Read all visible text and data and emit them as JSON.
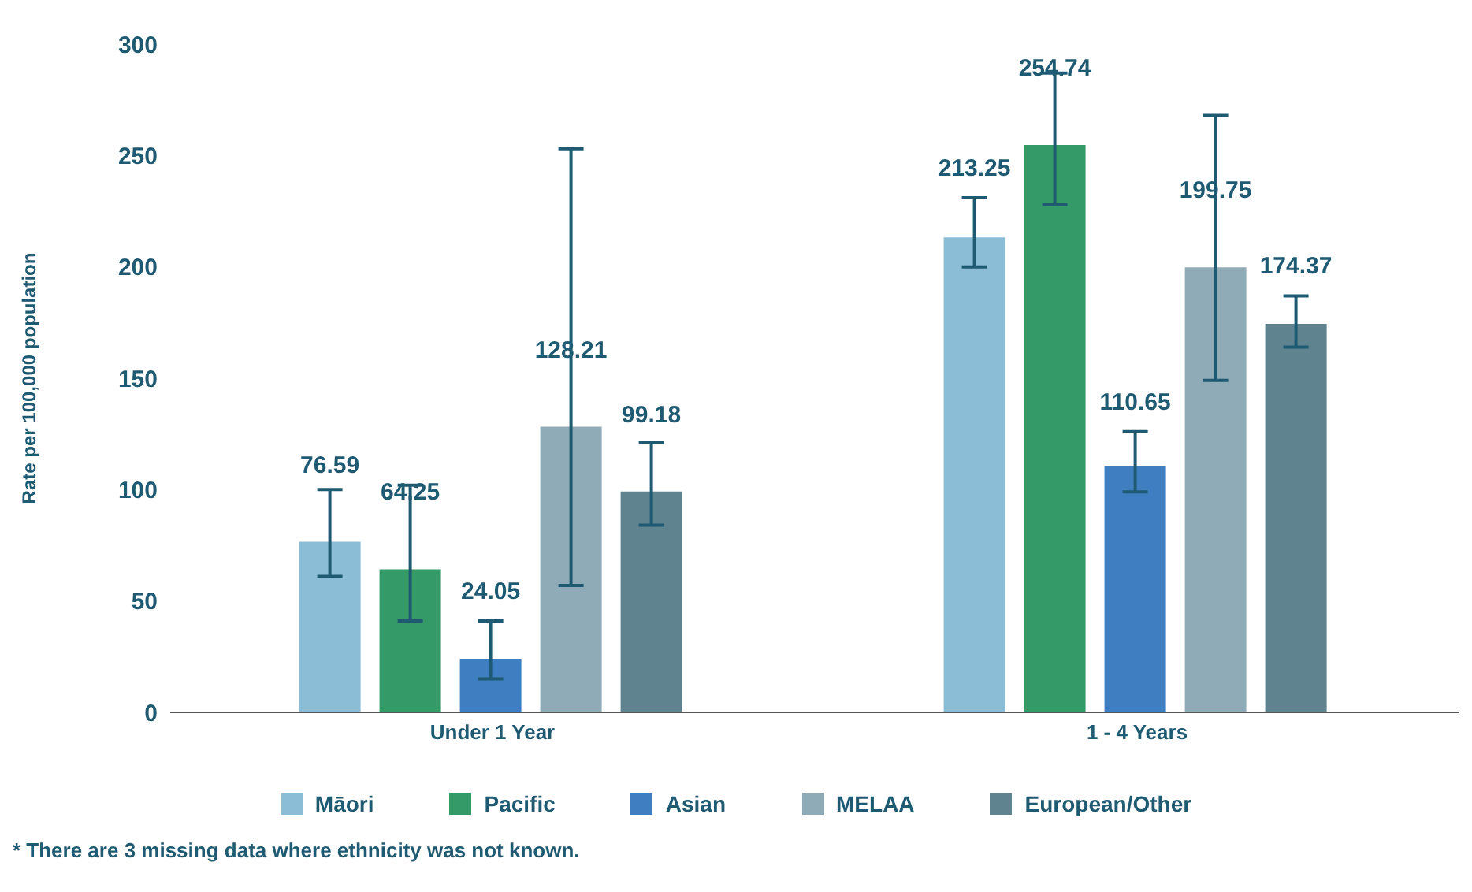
{
  "chart_data": {
    "type": "bar",
    "ylabel": "Rate per 100,000 population",
    "categories": [
      "Under 1 Year",
      "1 - 4 Years"
    ],
    "series": [
      {
        "name": "Māori",
        "color": "#8bbdd6",
        "values": [
          76.59,
          213.25
        ],
        "errors": [
          [
            61,
            100
          ],
          [
            200,
            231
          ]
        ]
      },
      {
        "name": "Pacific",
        "color": "#349b68",
        "values": [
          64.25,
          254.74
        ],
        "errors": [
          [
            41,
            102
          ],
          [
            228,
            287
          ]
        ]
      },
      {
        "name": "Asian",
        "color": "#3f7fc1",
        "values": [
          24.05,
          110.65
        ],
        "errors": [
          [
            15,
            41
          ],
          [
            99,
            126
          ]
        ]
      },
      {
        "name": "MELAA",
        "color": "#8fabb8",
        "values": [
          128.21,
          199.75
        ],
        "errors": [
          [
            57,
            253
          ],
          [
            149,
            268
          ]
        ]
      },
      {
        "name": "European/Other",
        "color": "#5f838f",
        "values": [
          99.18,
          174.37
        ],
        "errors": [
          [
            84,
            121
          ],
          [
            164,
            187
          ]
        ]
      }
    ],
    "ylim": [
      0,
      300
    ],
    "yticks": [
      0,
      50,
      100,
      150,
      200,
      250,
      300
    ],
    "data_labels": true,
    "legend": "bottom",
    "annotations": [
      "* There are 3 missing data where ethnicity was not known."
    ]
  }
}
